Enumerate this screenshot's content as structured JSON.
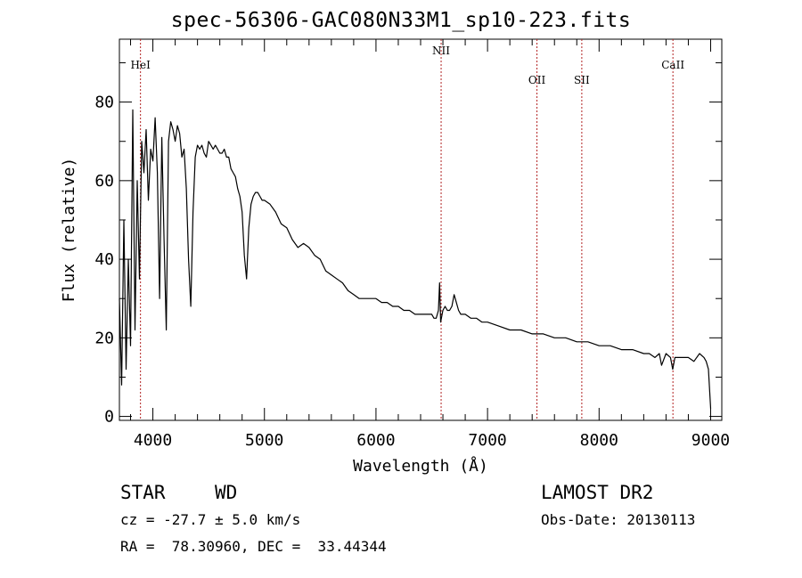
{
  "title": "spec-56306-GAC080N33M1_sp10-223.fits",
  "info": {
    "object_class": "STAR",
    "subclass": "WD",
    "cz": "cz = -27.7 ± 5.0 km/s",
    "coords": "RA =  78.30960, DEC =  33.44344",
    "survey": "LAMOST DR2",
    "obs_date": "Obs-Date: 20130113"
  },
  "chart_data": {
    "type": "line",
    "title": "spec-56306-GAC080N33M1_sp10-223.fits",
    "xlabel": "Wavelength (Å)",
    "ylabel": "Flux (relative)",
    "xlim": [
      3700,
      9100
    ],
    "ylim": [
      -1,
      96
    ],
    "x_ticks": [
      4000,
      5000,
      6000,
      7000,
      8000,
      9000
    ],
    "y_ticks": [
      0,
      20,
      40,
      60,
      80
    ],
    "grid": false,
    "line_color": "#000000",
    "marker_color": "#b22222",
    "lines": [
      {
        "name": "HeI",
        "x": 3889
      },
      {
        "name": "NII",
        "x": 6584
      },
      {
        "name": "OII",
        "x": 7443
      },
      {
        "name": "SII",
        "x": 7845
      },
      {
        "name": "CaII",
        "x": 8662
      }
    ],
    "series": [
      {
        "x": [
          3700,
          3720,
          3740,
          3760,
          3780,
          3800,
          3820,
          3840,
          3860,
          3880,
          3900,
          3920,
          3940,
          3960,
          3980,
          4000,
          4020,
          4040,
          4060,
          4080,
          4100,
          4120,
          4140,
          4160,
          4180,
          4200,
          4220,
          4240,
          4260,
          4280,
          4300,
          4320,
          4340,
          4360,
          4380,
          4400,
          4420,
          4440,
          4460,
          4480,
          4500,
          4520,
          4540,
          4560,
          4580,
          4600,
          4620,
          4640,
          4660,
          4680,
          4700,
          4720,
          4740,
          4760,
          4780,
          4800,
          4820,
          4840,
          4860,
          4880,
          4900,
          4920,
          4940,
          4960,
          4980,
          5000,
          5050,
          5100,
          5150,
          5200,
          5250,
          5300,
          5350,
          5400,
          5450,
          5500,
          5550,
          5600,
          5650,
          5700,
          5750,
          5800,
          5850,
          5900,
          5950,
          6000,
          6050,
          6100,
          6150,
          6200,
          6250,
          6300,
          6350,
          6400,
          6450,
          6500,
          6520,
          6540,
          6560,
          6570,
          6580,
          6600,
          6620,
          6640,
          6660,
          6680,
          6700,
          6720,
          6740,
          6760,
          6800,
          6850,
          6900,
          6950,
          7000,
          7100,
          7200,
          7300,
          7400,
          7500,
          7600,
          7700,
          7800,
          7900,
          8000,
          8100,
          8200,
          8300,
          8400,
          8450,
          8500,
          8540,
          8560,
          8600,
          8640,
          8660,
          8680,
          8700,
          8750,
          8800,
          8850,
          8900,
          8940,
          8960,
          8980,
          9000
        ],
        "y": [
          30,
          8,
          50,
          12,
          40,
          18,
          78,
          22,
          60,
          35,
          70,
          62,
          73,
          55,
          68,
          65,
          76,
          62,
          30,
          71,
          45,
          22,
          70,
          75,
          73,
          70,
          74,
          72,
          66,
          68,
          58,
          40,
          28,
          52,
          66,
          69,
          68,
          69,
          67,
          66,
          70,
          69,
          68,
          69,
          68,
          67,
          67,
          68,
          66,
          66,
          63,
          62,
          61,
          58,
          56,
          52,
          41,
          35,
          48,
          54,
          56,
          57,
          57,
          56,
          55,
          55,
          54,
          52,
          49,
          48,
          45,
          43,
          44,
          43,
          41,
          40,
          37,
          36,
          35,
          34,
          32,
          31,
          30,
          30,
          30,
          30,
          29,
          29,
          28,
          28,
          27,
          27,
          26,
          26,
          26,
          26,
          25,
          25,
          27,
          34,
          24,
          27,
          28,
          27,
          27,
          28,
          31,
          29,
          27,
          26,
          26,
          25,
          25,
          24,
          24,
          23,
          22,
          22,
          21,
          21,
          20,
          20,
          19,
          19,
          18,
          18,
          17,
          17,
          16,
          16,
          15,
          16,
          13,
          16,
          15,
          12,
          15,
          15,
          15,
          15,
          14,
          16,
          15,
          14,
          12,
          2
        ]
      }
    ]
  }
}
